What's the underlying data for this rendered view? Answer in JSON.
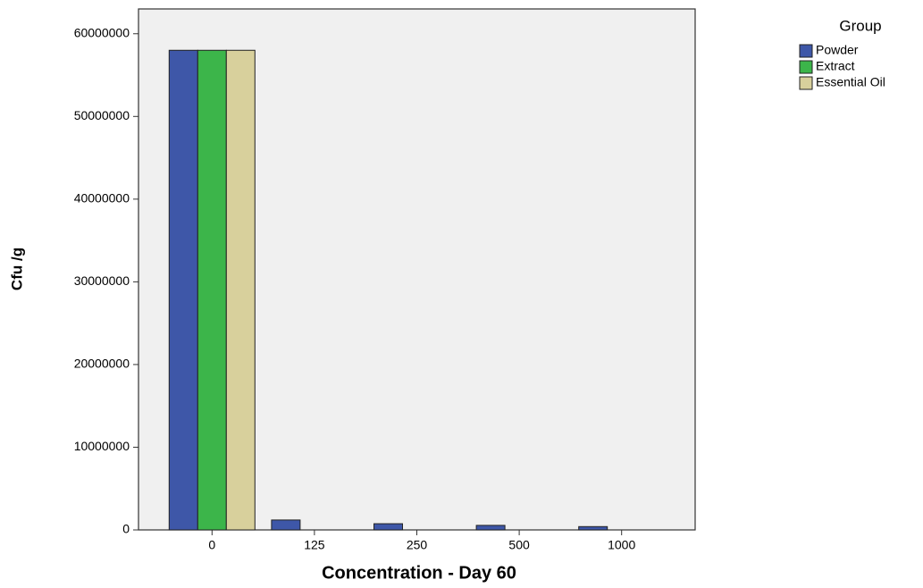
{
  "chart_data": {
    "type": "bar",
    "x_label": "Concentration - Day 60",
    "y_label": "Cfu /g",
    "categories": [
      "0",
      "125",
      "250",
      "500",
      "1000"
    ],
    "series": [
      {
        "name": "Powder",
        "color": "#3e57a8",
        "values": [
          58000000,
          1200000,
          750000,
          550000,
          400000
        ]
      },
      {
        "name": "Extract",
        "color": "#3cb54a",
        "values": [
          58000000,
          0,
          0,
          0,
          0
        ]
      },
      {
        "name": "Essential Oil",
        "color": "#d8d09c",
        "values": [
          58000000,
          0,
          0,
          0,
          0
        ]
      }
    ],
    "legend_title": "Group",
    "legend_position": "top-right",
    "ylim": [
      0,
      63000000
    ],
    "yticks": [
      0,
      10000000,
      20000000,
      30000000,
      40000000,
      50000000,
      60000000
    ],
    "grid": false
  }
}
